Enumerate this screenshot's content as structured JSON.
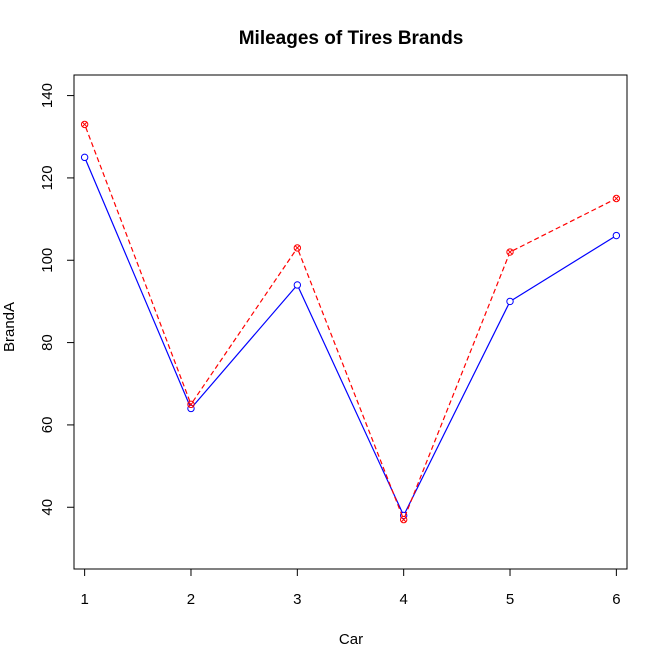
{
  "chart_data": {
    "type": "line",
    "title": "Mileages of Tires Brands",
    "xlabel": "Car",
    "ylabel": "BrandA",
    "x": [
      1,
      2,
      3,
      4,
      5,
      6
    ],
    "xlim": [
      0.9,
      6.1
    ],
    "ylim": [
      25,
      145
    ],
    "x_ticks": [
      1,
      2,
      3,
      4,
      5,
      6
    ],
    "y_ticks": [
      40,
      60,
      80,
      100,
      120,
      140
    ],
    "grid": false,
    "legend": "none",
    "series": [
      {
        "values": [
          125,
          64,
          94,
          38,
          90,
          106
        ],
        "color": "#0000ff",
        "line": "solid",
        "marker": "circle"
      },
      {
        "values": [
          133,
          65,
          103,
          37,
          102,
          115
        ],
        "color": "#ff0000",
        "line": "dashed",
        "marker": "circle-x"
      }
    ]
  }
}
